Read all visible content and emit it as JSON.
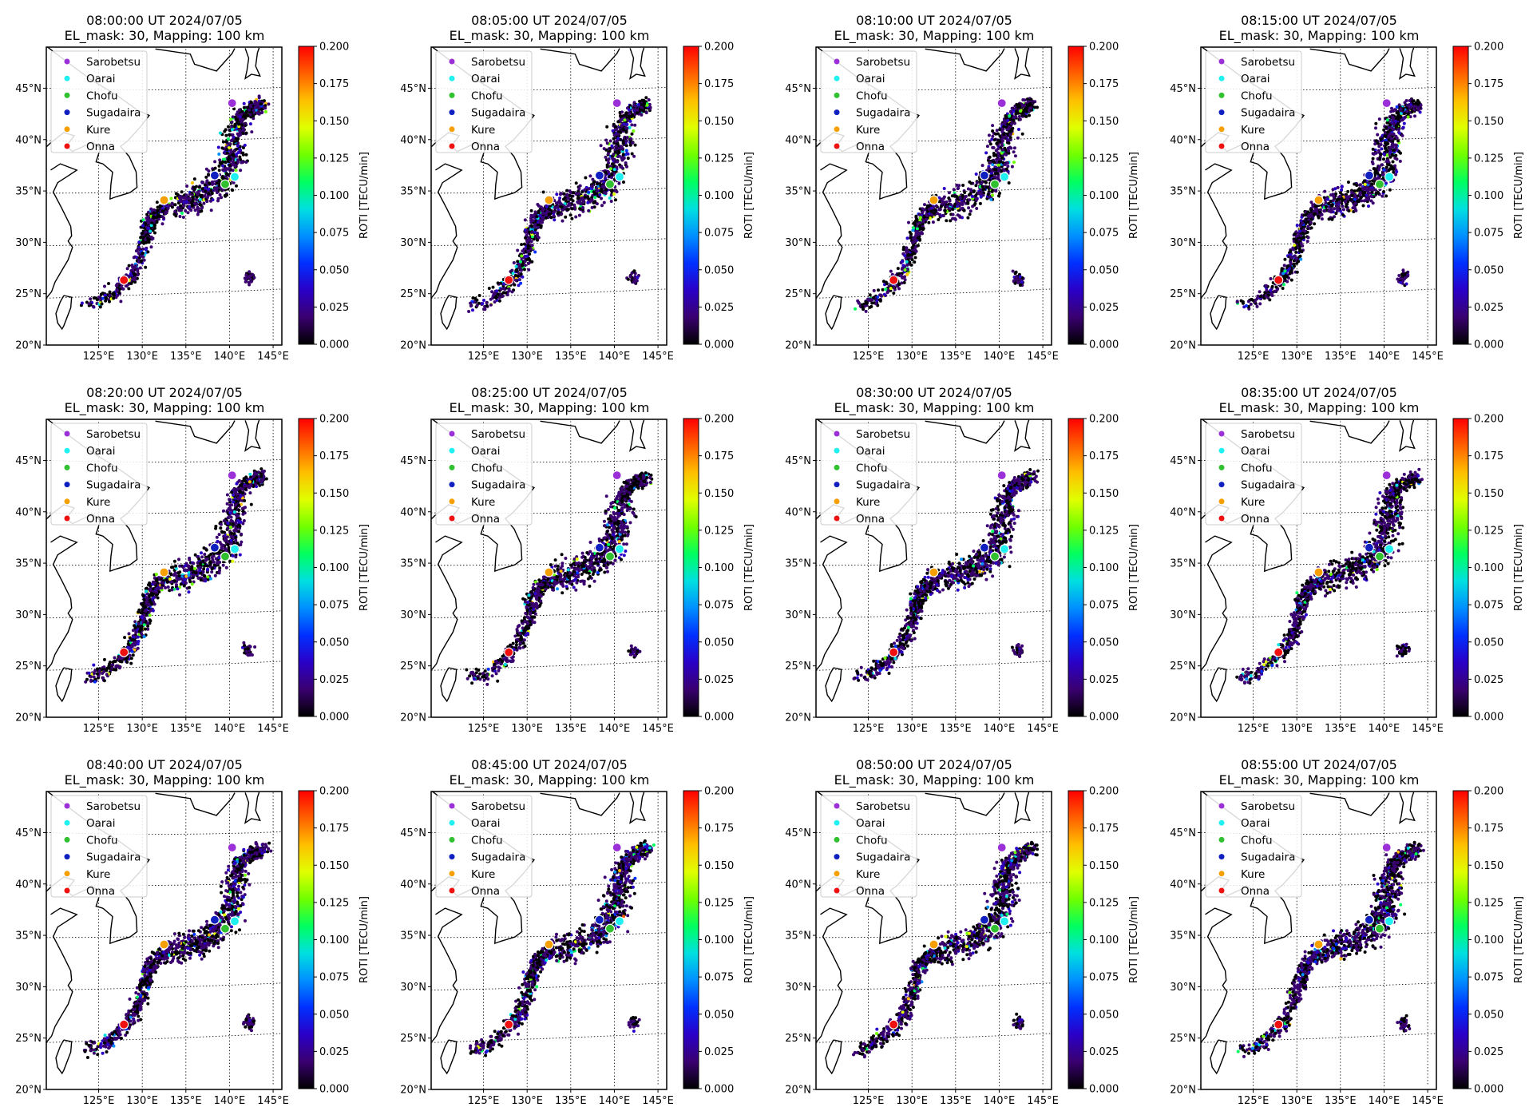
{
  "figure": {
    "subtitle": "EL_mask: 30, Mapping: 100 km",
    "colorbar_label": "ROTI [TECU/min]",
    "colormap": [
      "#000000",
      "#3a0070",
      "#2a00c8",
      "#0030ff",
      "#0090ff",
      "#00e0e0",
      "#00ff60",
      "#70ff00",
      "#e0ff00",
      "#ffc000",
      "#ff6000",
      "#ff0000"
    ]
  },
  "chart_data": {
    "type": "scatter",
    "x_ticks": [
      "125°E",
      "130°E",
      "135°E",
      "140°E",
      "145°E"
    ],
    "y_ticks": [
      "20°N",
      "25°N",
      "30°N",
      "35°N",
      "40°N",
      "45°N"
    ],
    "colorbar_ticks": [
      "0.000",
      "0.025",
      "0.050",
      "0.075",
      "0.100",
      "0.125",
      "0.150",
      "0.175",
      "0.200"
    ],
    "colorbar_range": [
      0.0,
      0.2
    ],
    "legend_position": "top-left",
    "stations": [
      {
        "name": "Sarobetsu",
        "color": "#9b30d8"
      },
      {
        "name": "Oarai",
        "color": "#20f0f0"
      },
      {
        "name": "Chofu",
        "color": "#30c030"
      },
      {
        "name": "Sugadaira",
        "color": "#1020c0"
      },
      {
        "name": "Kure",
        "color": "#f5a000"
      },
      {
        "name": "Onna",
        "color": "#f01010"
      }
    ],
    "panels": [
      {
        "title": "08:00:00 UT 2024/07/05"
      },
      {
        "title": "08:05:00 UT 2024/07/05"
      },
      {
        "title": "08:10:00 UT 2024/07/05"
      },
      {
        "title": "08:15:00 UT 2024/07/05"
      },
      {
        "title": "08:20:00 UT 2024/07/05"
      },
      {
        "title": "08:25:00 UT 2024/07/05"
      },
      {
        "title": "08:30:00 UT 2024/07/05"
      },
      {
        "title": "08:35:00 UT 2024/07/05"
      },
      {
        "title": "08:40:00 UT 2024/07/05"
      },
      {
        "title": "08:45:00 UT 2024/07/05"
      },
      {
        "title": "08:50:00 UT 2024/07/05"
      },
      {
        "title": "08:55:00 UT 2024/07/05"
      }
    ]
  }
}
